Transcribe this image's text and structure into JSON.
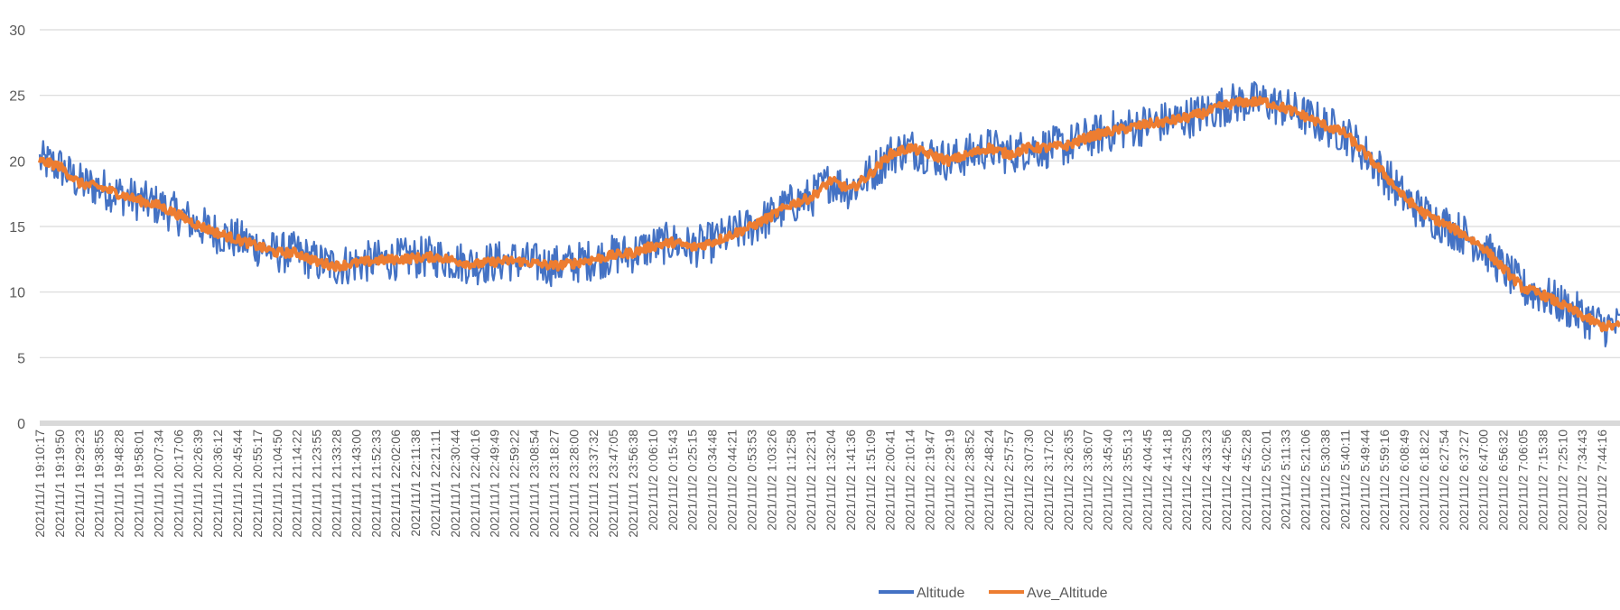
{
  "chart_data": {
    "type": "line",
    "title": "",
    "xlabel": "",
    "ylabel": "",
    "ylim": [
      0,
      30
    ],
    "yticks": [
      0,
      5,
      10,
      15,
      20,
      25,
      30
    ],
    "grid": true,
    "legend_position": "bottom",
    "x_tick_labels": [
      "2021/11/1 19:10:17",
      "2021/11/1 19:19:50",
      "2021/11/1 19:29:23",
      "2021/11/1 19:38:55",
      "2021/11/1 19:48:28",
      "2021/11/1 19:58:01",
      "2021/11/1 20:07:34",
      "2021/11/1 20:17:06",
      "2021/11/1 20:26:39",
      "2021/11/1 20:36:12",
      "2021/11/1 20:45:44",
      "2021/11/1 20:55:17",
      "2021/11/1 21:04:50",
      "2021/11/1 21:14:22",
      "2021/11/1 21:23:55",
      "2021/11/1 21:33:28",
      "2021/11/1 21:43:00",
      "2021/11/1 21:52:33",
      "2021/11/1 22:02:06",
      "2021/11/1 22:11:38",
      "2021/11/1 22:21:11",
      "2021/11/1 22:30:44",
      "2021/11/1 22:40:16",
      "2021/11/1 22:49:49",
      "2021/11/1 22:59:22",
      "2021/11/1 23:08:54",
      "2021/11/1 23:18:27",
      "2021/11/1 23:28:00",
      "2021/11/1 23:37:32",
      "2021/11/1 23:47:05",
      "2021/11/1 23:56:38",
      "2021/11/2 0:06:10",
      "2021/11/2 0:15:43",
      "2021/11/2 0:25:15",
      "2021/11/2 0:34:48",
      "2021/11/2 0:44:21",
      "2021/11/2 0:53:53",
      "2021/11/2 1:03:26",
      "2021/11/2 1:12:58",
      "2021/11/2 1:22:31",
      "2021/11/2 1:32:04",
      "2021/11/2 1:41:36",
      "2021/11/2 1:51:09",
      "2021/11/2 2:00:41",
      "2021/11/2 2:10:14",
      "2021/11/2 2:19:47",
      "2021/11/2 2:29:19",
      "2021/11/2 2:38:52",
      "2021/11/2 2:48:24",
      "2021/11/2 2:57:57",
      "2021/11/2 3:07:30",
      "2021/11/2 3:17:02",
      "2021/11/2 3:26:35",
      "2021/11/2 3:36:07",
      "2021/11/2 3:45:40",
      "2021/11/2 3:55:13",
      "2021/11/2 4:04:45",
      "2021/11/2 4:14:18",
      "2021/11/2 4:23:50",
      "2021/11/2 4:33:23",
      "2021/11/2 4:42:56",
      "2021/11/2 4:52:28",
      "2021/11/2 5:02:01",
      "2021/11/2 5:11:33",
      "2021/11/2 5:21:06",
      "2021/11/2 5:30:38",
      "2021/11/2 5:40:11",
      "2021/11/2 5:49:44",
      "2021/11/2 5:59:16",
      "2021/11/2 6:08:49",
      "2021/11/2 6:18:22",
      "2021/11/2 6:27:54",
      "2021/11/2 6:37:27",
      "2021/11/2 6:47:00",
      "2021/11/2 6:56:32",
      "2021/11/2 7:06:05",
      "2021/11/2 7:15:38",
      "2021/11/2 7:25:10",
      "2021/11/2 7:34:43",
      "2021/11/2 7:44:16"
    ],
    "series": [
      {
        "name": "Altitude",
        "color": "#4472c4",
        "noise_amplitude": 1.6,
        "values": [
          20.0,
          19.6,
          18.3,
          18.0,
          17.5,
          17.0,
          16.6,
          15.9,
          15.1,
          14.5,
          14.0,
          13.5,
          13.0,
          13.0,
          12.3,
          12.0,
          12.2,
          12.4,
          12.5,
          12.6,
          12.7,
          12.4,
          12.1,
          12.3,
          12.4,
          12.2,
          12.0,
          12.2,
          12.5,
          12.8,
          13.0,
          13.5,
          13.8,
          13.4,
          13.8,
          14.4,
          15.0,
          15.8,
          16.7,
          17.2,
          18.5,
          17.8,
          19.0,
          20.5,
          21.0,
          20.5,
          20.0,
          20.5,
          21.0,
          20.5,
          21.0,
          21.0,
          21.2,
          21.8,
          22.2,
          22.5,
          22.8,
          23.0,
          23.3,
          23.7,
          24.3,
          24.5,
          24.5,
          24.0,
          23.4,
          22.7,
          22.1,
          20.6,
          19.0,
          17.2,
          16.0,
          15.2,
          14.4,
          13.4,
          11.8,
          10.3,
          9.8,
          9.0,
          8.2,
          7.4
        ]
      },
      {
        "name": "Ave_Altitude",
        "color": "#ed7d31",
        "noise_amplitude": 0.35,
        "values": [
          20.0,
          19.6,
          18.3,
          18.0,
          17.5,
          17.0,
          16.6,
          15.9,
          15.1,
          14.5,
          14.0,
          13.5,
          13.0,
          13.0,
          12.3,
          12.0,
          12.2,
          12.4,
          12.5,
          12.6,
          12.7,
          12.4,
          12.1,
          12.3,
          12.4,
          12.2,
          12.0,
          12.2,
          12.5,
          12.8,
          13.0,
          13.5,
          13.8,
          13.4,
          13.8,
          14.4,
          15.0,
          15.8,
          16.7,
          17.2,
          18.5,
          17.8,
          19.0,
          20.5,
          21.0,
          20.5,
          20.0,
          20.5,
          21.0,
          20.5,
          21.0,
          21.0,
          21.2,
          21.8,
          22.2,
          22.5,
          22.8,
          23.0,
          23.3,
          23.7,
          24.3,
          24.5,
          24.5,
          24.0,
          23.4,
          22.7,
          22.1,
          20.6,
          19.0,
          17.2,
          16.0,
          15.2,
          14.4,
          13.4,
          11.8,
          10.3,
          9.8,
          9.0,
          8.2,
          7.4
        ]
      }
    ]
  }
}
